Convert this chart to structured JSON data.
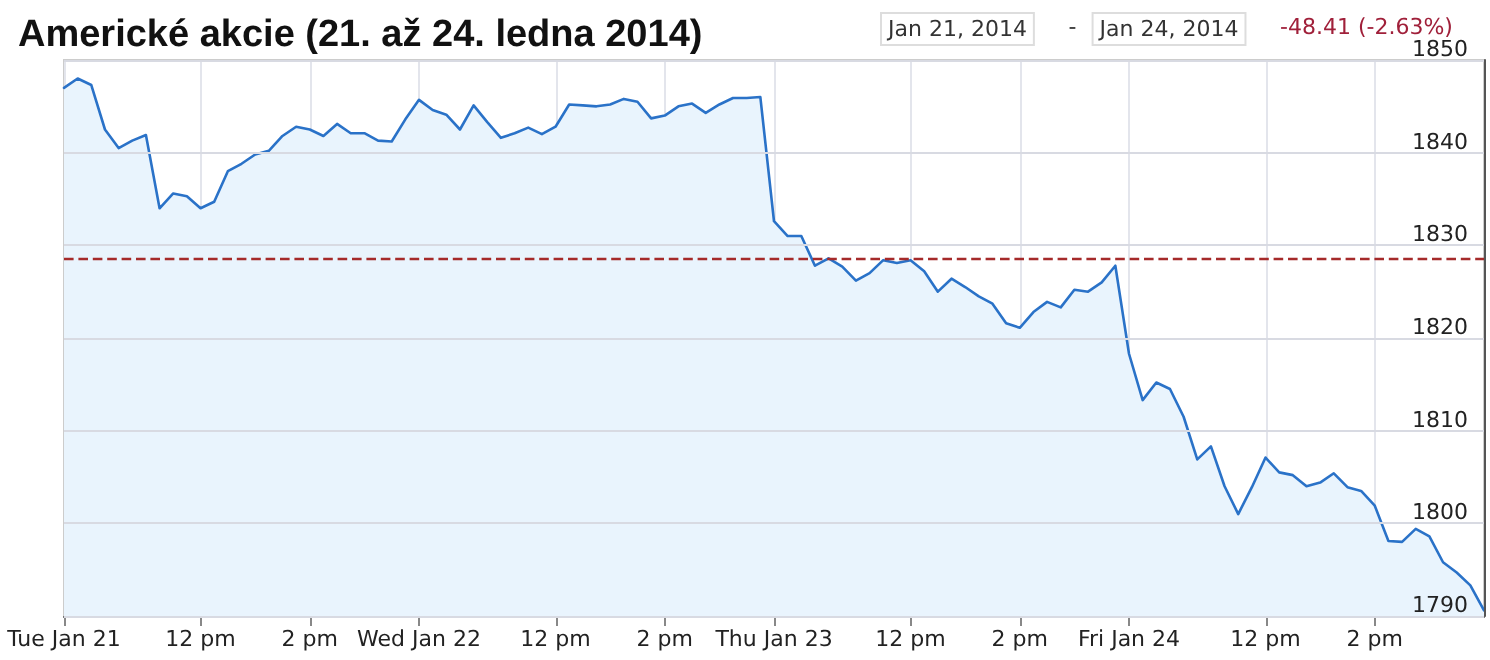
{
  "chart_data": {
    "type": "area",
    "title": "Americké akcie (21. až 24. ledna 2014)",
    "annotations": [
      "Jan 21, 2014",
      "-",
      "Jan 24, 2014",
      "-48.41 (-2.63%)"
    ],
    "categories": [
      "Tue Jan 21",
      null,
      null,
      null,
      null,
      null,
      null,
      null,
      null,
      null,
      "12 pm",
      null,
      null,
      null,
      null,
      null,
      null,
      null,
      "2 pm",
      null,
      null,
      null,
      null,
      null,
      null,
      null,
      "Wed Jan 22",
      null,
      null,
      null,
      null,
      null,
      null,
      null,
      null,
      null,
      "12 pm",
      null,
      null,
      null,
      null,
      null,
      null,
      null,
      "2 pm",
      null,
      null,
      null,
      null,
      null,
      null,
      null,
      "Thu Jan 23",
      null,
      null,
      null,
      null,
      null,
      null,
      null,
      null,
      null,
      "12 pm",
      null,
      null,
      null,
      null,
      null,
      null,
      null,
      "2 pm",
      null,
      null,
      null,
      null,
      null,
      null,
      null,
      "Fri Jan 24",
      null,
      null,
      null,
      null,
      null,
      null,
      null,
      null,
      null,
      "12 pm",
      null,
      null,
      null,
      null,
      null,
      null,
      null,
      "2 pm",
      null,
      null,
      null,
      null,
      null,
      null,
      null,
      null
    ],
    "series": [
      {
        "color": "#2a72c8",
        "values": [
          1847.0,
          1848.0,
          1847.3,
          1842.5,
          1840.5,
          1841.3,
          1841.9,
          1834.0,
          1835.6,
          1835.3,
          1834.0,
          1834.7,
          1838.0,
          1838.8,
          1839.8,
          1840.2,
          1841.8,
          1842.8,
          1842.5,
          1841.8,
          1843.1,
          1842.1,
          1842.1,
          1841.3,
          1841.2,
          1843.6,
          1845.7,
          1844.6,
          1844.1,
          1842.5,
          1845.1,
          1843.3,
          1841.6,
          1842.1,
          1842.7,
          1842.0,
          1842.8,
          1845.2,
          1845.1,
          1845.0,
          1845.2,
          1845.8,
          1845.5,
          1843.7,
          1844.0,
          1845.0,
          1845.3,
          1844.3,
          1845.2,
          1845.9,
          1845.9,
          1846.0,
          1832.6,
          1831.0,
          1831.0,
          1827.8,
          1828.6,
          1827.7,
          1826.2,
          1827.0,
          1828.4,
          1828.1,
          1828.4,
          1827.2,
          1825.0,
          1826.4,
          1825.5,
          1824.5,
          1823.7,
          1821.6,
          1821.1,
          1822.8,
          1823.9,
          1823.3,
          1825.2,
          1825.0,
          1826.0,
          1827.8,
          1818.3,
          1813.3,
          1815.2,
          1814.5,
          1811.5,
          1806.9,
          1808.3,
          1804.0,
          1801.0,
          1803.9,
          1807.1,
          1805.5,
          1805.2,
          1804.0,
          1804.4,
          1805.4,
          1803.9,
          1803.5,
          1801.9,
          1798.1,
          1798.0,
          1799.4,
          1798.6,
          1795.8,
          1794.7,
          1793.3,
          1790.6
        ]
      }
    ],
    "ylim": [
      1790,
      1850
    ],
    "yticks": [
      1790,
      1800,
      1810,
      1820,
      1830,
      1840,
      1850
    ],
    "ref_lines": [
      {
        "axis": "y",
        "value": 1828.5,
        "color": "#a52a2a",
        "line_style": "dashed"
      }
    ],
    "grid": true,
    "marker": "none",
    "line_style": "solid"
  }
}
